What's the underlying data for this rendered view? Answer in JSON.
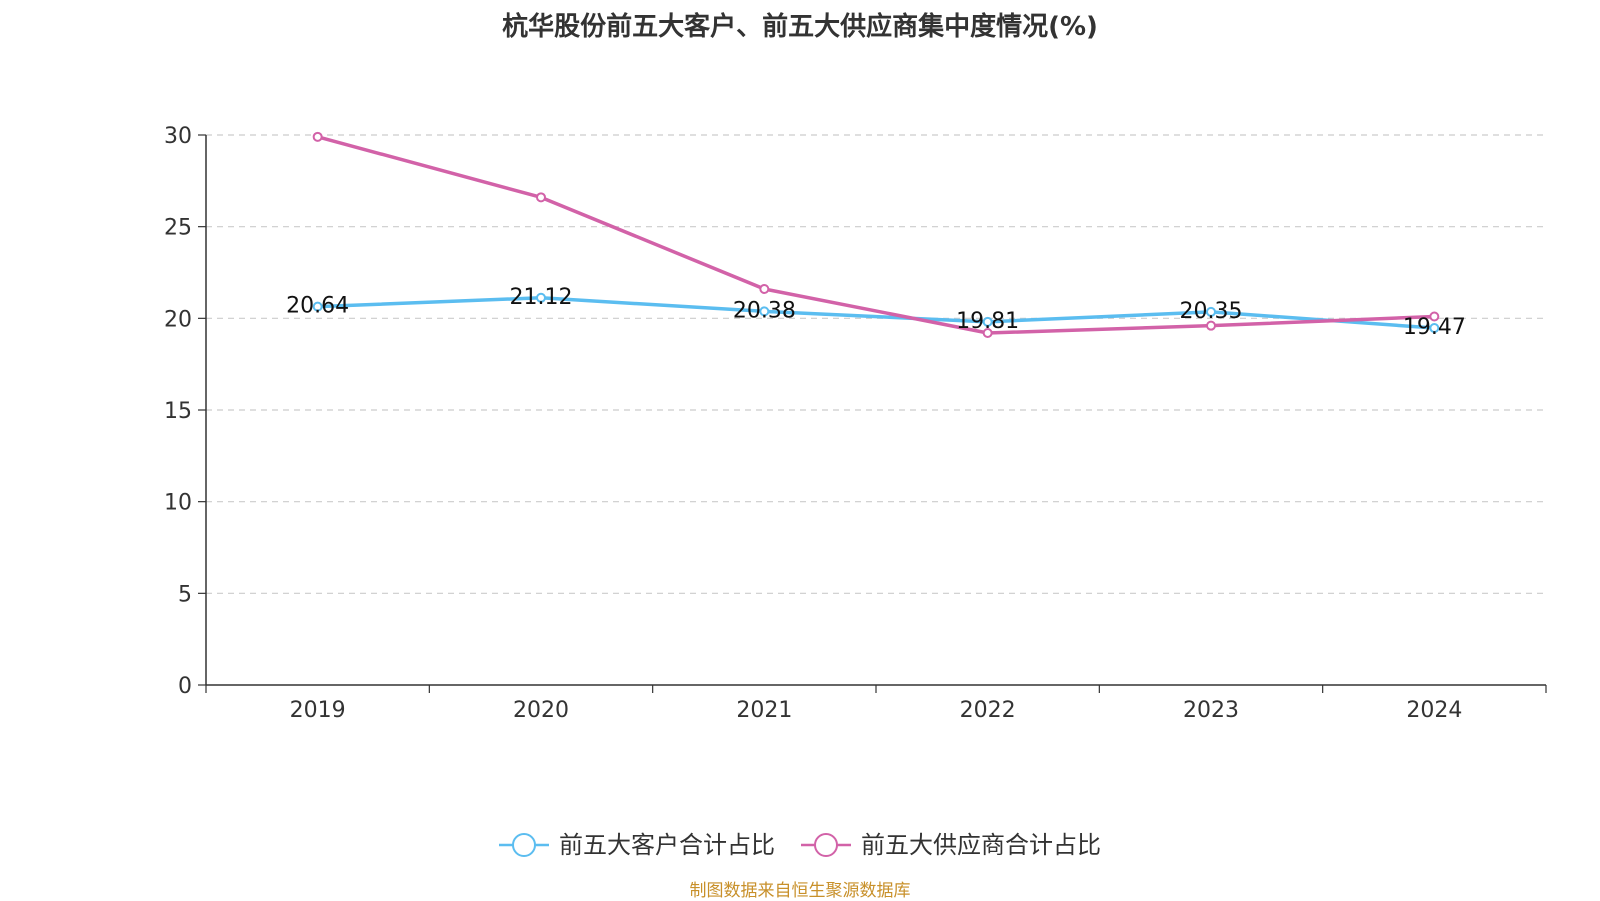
{
  "title": "杭华股份前五大客户、前五大供应商集中度情况(%)",
  "source": "制图数据来自恒生聚源数据库",
  "chart_data": {
    "type": "line",
    "title": "杭华股份前五大客户、前五大供应商集中度情况(%)",
    "categories": [
      "2019",
      "2020",
      "2021",
      "2022",
      "2023",
      "2024"
    ],
    "ylim": [
      0,
      30
    ],
    "yticks": [
      0,
      5,
      10,
      15,
      20,
      25,
      30
    ],
    "grid": true,
    "legend_position": "bottom",
    "series": [
      {
        "name": "前五大客户合计占比",
        "color": "#5bbdf0",
        "values": [
          20.64,
          21.12,
          20.38,
          19.81,
          20.35,
          19.47
        ],
        "show_labels": true
      },
      {
        "name": "前五大供应商合计占比",
        "color": "#d262a8",
        "values": [
          29.9,
          26.6,
          21.6,
          19.2,
          19.6,
          20.1
        ],
        "show_labels": false
      }
    ]
  }
}
